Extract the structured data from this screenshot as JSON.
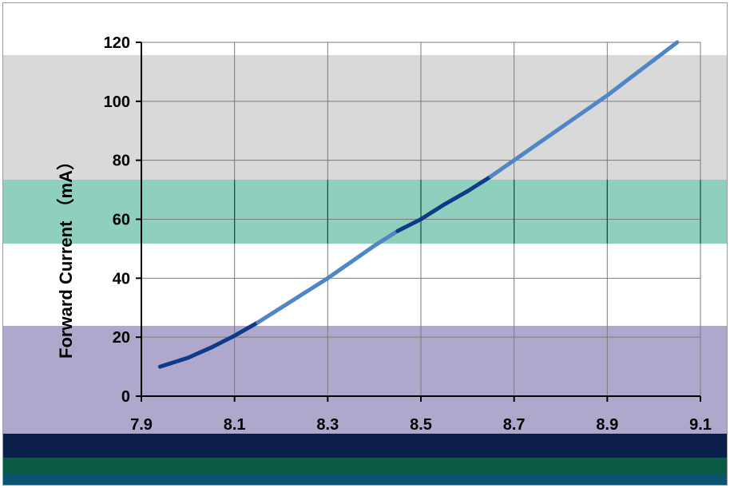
{
  "colors": {
    "band_top": "#d9d9d9",
    "band_teal": "#8fcfbe",
    "band_purple": "#b0a8cc",
    "band_navy": "#0b1f4b",
    "band_green": "#0a5a45",
    "band_petrol": "#0a5472",
    "gridline": "#7a7a7a",
    "teal_gridline": "#0d4d3f",
    "curve_dark": "#0d3b86",
    "curve_light": "#4f86c6"
  },
  "chart_data": {
    "type": "line",
    "title": "",
    "xlabel": "",
    "ylabel": "Forward Current （mA）",
    "xlim": [
      7.9,
      9.1
    ],
    "ylim": [
      0,
      120
    ],
    "x_ticks": [
      "7.9",
      "8.1",
      "8.3",
      "8.5",
      "8.7",
      "8.9",
      "9.1"
    ],
    "y_ticks": [
      "0",
      "20",
      "40",
      "60",
      "80",
      "100",
      "120"
    ],
    "grid": true,
    "series": [
      {
        "name": "",
        "x": [
          7.94,
          8.0,
          8.05,
          8.1,
          8.15,
          8.2,
          8.25,
          8.3,
          8.35,
          8.4,
          8.45,
          8.5,
          8.55,
          8.6,
          8.65,
          8.7,
          8.75,
          8.8,
          8.85,
          8.9,
          8.95,
          9.0,
          9.05
        ],
        "y": [
          10,
          13,
          16.5,
          20.5,
          25,
          30,
          35,
          40,
          45.5,
          51,
          56,
          60,
          65,
          69.5,
          74.5,
          80,
          85.5,
          91,
          96.5,
          102,
          108,
          114,
          120
        ]
      }
    ]
  }
}
